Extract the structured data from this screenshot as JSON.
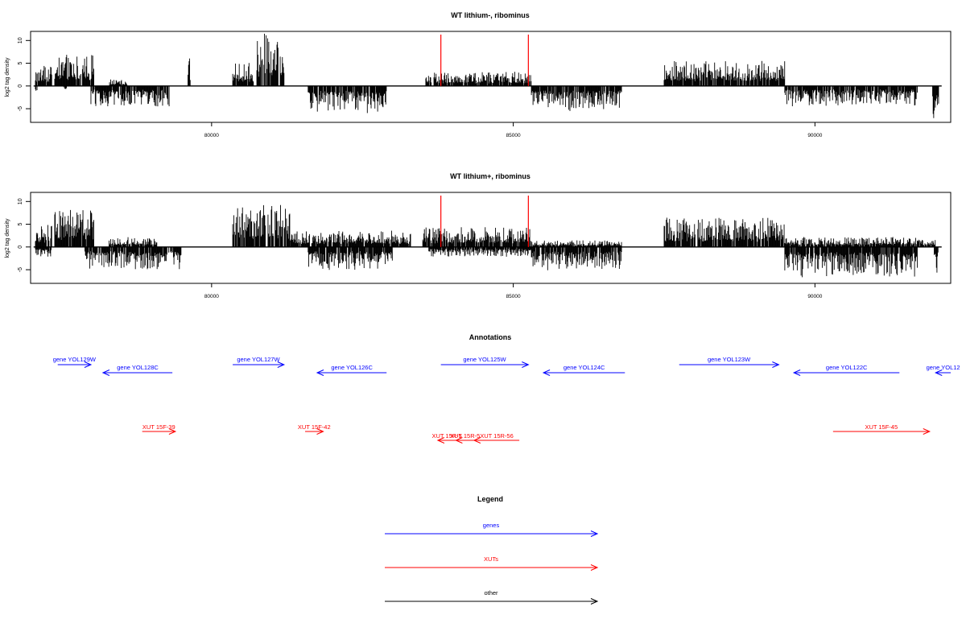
{
  "colors": {
    "genes": "#0000ff",
    "xuts": "#ff0000",
    "other": "#000000",
    "signal": "#000000",
    "marker": "#ff0000"
  },
  "chart_data": [
    {
      "type": "bar",
      "title": "WT lithium-, ribominus",
      "ylabel": "log2 tag density",
      "xlim": [
        77000,
        92250
      ],
      "ylim": [
        -8,
        12
      ],
      "xticks": [
        "80000",
        "85000",
        "90000"
      ],
      "yticks": [
        "10",
        "5",
        "0",
        "-5"
      ],
      "red_markers": [
        83800,
        85250
      ],
      "segments": [
        {
          "x0": 77080,
          "x1": 77350,
          "sign": 1,
          "amp": 3.0
        },
        {
          "x0": 77080,
          "x1": 77120,
          "sign": -1,
          "amp": 2.5
        },
        {
          "x0": 77400,
          "x1": 78050,
          "sign": 1,
          "amp": 5.0
        },
        {
          "x0": 77550,
          "x1": 77620,
          "sign": -1,
          "amp": 1.0
        },
        {
          "x0": 78000,
          "x1": 79300,
          "sign": -1,
          "amp": 3.2
        },
        {
          "x0": 78300,
          "x1": 78600,
          "sign": 1,
          "amp": 1.0
        },
        {
          "x0": 79600,
          "x1": 79650,
          "sign": 1,
          "amp": 4.5
        },
        {
          "x0": 80350,
          "x1": 80700,
          "sign": 1,
          "amp": 3.5
        },
        {
          "x0": 80750,
          "x1": 81200,
          "sign": 1,
          "amp": 8.0
        },
        {
          "x0": 81600,
          "x1": 82900,
          "sign": -1,
          "amp": 4.2
        },
        {
          "x0": 83550,
          "x1": 85300,
          "sign": 1,
          "amp": 2.2
        },
        {
          "x0": 85300,
          "x1": 86800,
          "sign": -1,
          "amp": 3.8
        },
        {
          "x0": 87500,
          "x1": 89500,
          "sign": 1,
          "amp": 4.0
        },
        {
          "x0": 89500,
          "x1": 91700,
          "sign": -1,
          "amp": 3.0
        },
        {
          "x0": 91950,
          "x1": 92050,
          "sign": -1,
          "amp": 5.5
        }
      ]
    },
    {
      "type": "bar",
      "title": "WT lithium+, ribominus",
      "ylabel": "log2 tag density",
      "xlim": [
        77000,
        92250
      ],
      "ylim": [
        -8,
        12
      ],
      "xticks": [
        "80000",
        "85000",
        "90000"
      ],
      "yticks": [
        "10",
        "5",
        "0",
        "-5"
      ],
      "red_markers": [
        83800,
        85250
      ],
      "segments": [
        {
          "x0": 77080,
          "x1": 77350,
          "sign": 1,
          "amp": 3.5
        },
        {
          "x0": 77080,
          "x1": 77350,
          "sign": -1,
          "amp": 1.5
        },
        {
          "x0": 77400,
          "x1": 78050,
          "sign": 1,
          "amp": 6.0
        },
        {
          "x0": 77900,
          "x1": 79500,
          "sign": -1,
          "amp": 3.5
        },
        {
          "x0": 78300,
          "x1": 79100,
          "sign": 1,
          "amp": 1.5
        },
        {
          "x0": 80350,
          "x1": 80800,
          "sign": 1,
          "amp": 6.5
        },
        {
          "x0": 80800,
          "x1": 81300,
          "sign": 1,
          "amp": 7.0
        },
        {
          "x0": 81300,
          "x1": 83300,
          "sign": 1,
          "amp": 2.5
        },
        {
          "x0": 81600,
          "x1": 83000,
          "sign": -1,
          "amp": 3.5
        },
        {
          "x0": 83500,
          "x1": 85300,
          "sign": 1,
          "amp": 3.0
        },
        {
          "x0": 83600,
          "x1": 85300,
          "sign": -1,
          "amp": 1.5
        },
        {
          "x0": 85300,
          "x1": 86800,
          "sign": -1,
          "amp": 3.5
        },
        {
          "x0": 85300,
          "x1": 86800,
          "sign": 1,
          "amp": 1.0
        },
        {
          "x0": 87500,
          "x1": 89500,
          "sign": 1,
          "amp": 4.5
        },
        {
          "x0": 89500,
          "x1": 91700,
          "sign": -1,
          "amp": 4.5
        },
        {
          "x0": 89500,
          "x1": 92000,
          "sign": 1,
          "amp": 1.5
        },
        {
          "x0": 91950,
          "x1": 92050,
          "sign": -1,
          "amp": 4.5
        }
      ]
    }
  ],
  "annotations": {
    "title": "Annotations",
    "genes": [
      {
        "label": "gene YOL129W",
        "start": 77450,
        "end": 78000,
        "strand": "+",
        "row": 0
      },
      {
        "label": "gene YOL128C",
        "start": 78200,
        "end": 79350,
        "strand": "-",
        "row": 1
      },
      {
        "label": "gene YOL127W",
        "start": 80350,
        "end": 81200,
        "strand": "+",
        "row": 0
      },
      {
        "label": "gene YOL126C",
        "start": 81750,
        "end": 82900,
        "strand": "-",
        "row": 1
      },
      {
        "label": "gene YOL125W",
        "start": 83800,
        "end": 85250,
        "strand": "+",
        "row": 0
      },
      {
        "label": "gene YOL124C",
        "start": 85500,
        "end": 86850,
        "strand": "-",
        "row": 1
      },
      {
        "label": "gene YOL123W",
        "start": 87750,
        "end": 89400,
        "strand": "+",
        "row": 0
      },
      {
        "label": "gene YOL122C",
        "start": 89650,
        "end": 91400,
        "strand": "-",
        "row": 1
      },
      {
        "label": "gene YOL12",
        "start": 92000,
        "end": 92250,
        "strand": "-",
        "row": 1
      }
    ],
    "xuts": [
      {
        "label": "XUT 15F-39",
        "start": 78850,
        "end": 79400,
        "strand": "+",
        "row": 0
      },
      {
        "label": "XUT 15F-42",
        "start": 81550,
        "end": 81850,
        "strand": "+",
        "row": 0
      },
      {
        "label": "XUT 15R-5",
        "start": 83750,
        "end": 84050,
        "strand": "-",
        "row": 1
      },
      {
        "label": "XUT 15R-5",
        "start": 84050,
        "end": 84350,
        "strand": "-",
        "row": 1
      },
      {
        "label": "XUT 15R-56",
        "start": 84350,
        "end": 85100,
        "strand": "-",
        "row": 1
      },
      {
        "label": "XUT 15F-45",
        "start": 90300,
        "end": 91900,
        "strand": "+",
        "row": 0
      }
    ]
  },
  "legend": {
    "title": "Legend",
    "items": [
      {
        "label": "genes",
        "kind": "genes"
      },
      {
        "label": "XUTs",
        "kind": "xuts"
      },
      {
        "label": "other",
        "kind": "other"
      }
    ]
  }
}
